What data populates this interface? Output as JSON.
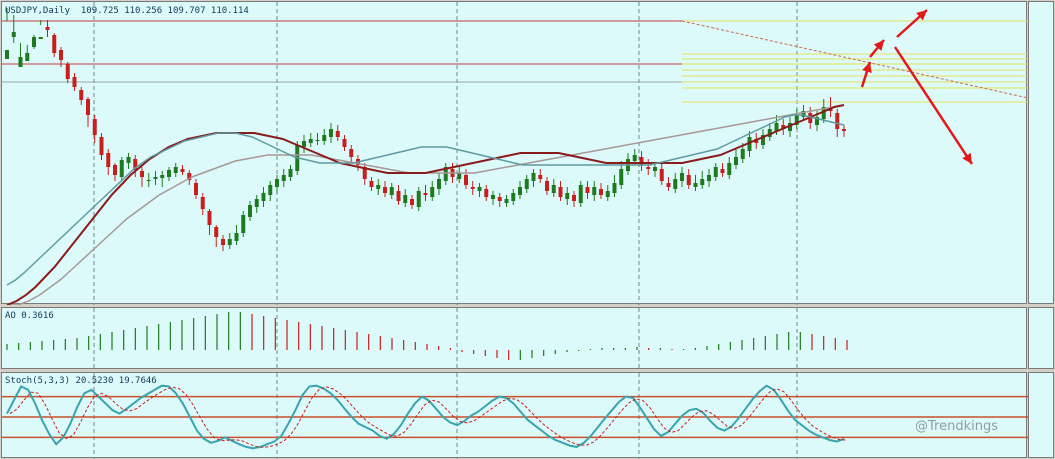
{
  "main_header": "USDJPY,Daily  109.725 110.256 109.707 110.114",
  "ao_header": "AO 0.3616",
  "stoch_header": "Stoch(5,3,3) 20.5230 19.7646",
  "watermark": "@Trendkings",
  "colors": {
    "background": "#dcfafa",
    "bull_candle": "#1e7a1e",
    "bear_candle": "#c81e1e",
    "ma_fast": "#5f9aa0",
    "ma_mid": "#8b1a1a",
    "ma_slow": "#a89896",
    "fib_lines": "#e6e05a",
    "arrow": "#e41818",
    "stoch_main": "#3aa3b0",
    "stoch_signal": "#c81e1e",
    "stoch_levels": "#c8502a"
  },
  "chart_data": [
    {
      "type": "candlestick",
      "title": "USDJPY,Daily",
      "ohlc_current": {
        "open": 109.725,
        "high": 110.256,
        "low": 109.707,
        "close": 110.114
      },
      "candles": [
        [
          246,
          255,
          297,
          284
        ],
        [
          268,
          273,
          290,
          262
        ],
        [
          238,
          248,
          262,
          238
        ],
        [
          244,
          252,
          260,
          247
        ],
        [
          258,
          268,
          270,
          256
        ],
        [
          266,
          268,
          285,
          280
        ],
        [
          278,
          275,
          285,
          268
        ],
        [
          270,
          252,
          272,
          248
        ],
        [
          255,
          245,
          258,
          238
        ],
        [
          241,
          226,
          243,
          222
        ],
        [
          228,
          218,
          232,
          214
        ],
        [
          215,
          205,
          218,
          200
        ],
        [
          206,
          190,
          208,
          178
        ],
        [
          186,
          170,
          190,
          162
        ],
        [
          168,
          150,
          172,
          145
        ],
        [
          152,
          138,
          156,
          130
        ],
        [
          140,
          130,
          142,
          124
        ],
        [
          128,
          145,
          148,
          124
        ],
        [
          142,
          148,
          152,
          136
        ],
        [
          146,
          135,
          150,
          128
        ],
        [
          134,
          128,
          138,
          118
        ],
        [
          124,
          125,
          132,
          118
        ],
        [
          126,
          128,
          134,
          120
        ],
        [
          127,
          130,
          134,
          118
        ],
        [
          128,
          135,
          138,
          124
        ],
        [
          132,
          138,
          142,
          128
        ],
        [
          136,
          133,
          140,
          130
        ],
        [
          132,
          125,
          135,
          120
        ],
        [
          122,
          110,
          126,
          106
        ],
        [
          108,
          96,
          112,
          90
        ],
        [
          94,
          80,
          96,
          70
        ],
        [
          78,
          68,
          80,
          58
        ],
        [
          66,
          60,
          70,
          54
        ],
        [
          60,
          66,
          72,
          56
        ],
        [
          64,
          72,
          80,
          60
        ],
        [
          72,
          90,
          94,
          68
        ],
        [
          88,
          100,
          104,
          84
        ],
        [
          98,
          106,
          110,
          92
        ],
        [
          104,
          112,
          118,
          98
        ],
        [
          110,
          120,
          124,
          104
        ],
        [
          118,
          126,
          130,
          112
        ],
        [
          124,
          130,
          136,
          118
        ],
        [
          128,
          136,
          140,
          124
        ],
        [
          134,
          160,
          164,
          130
        ],
        [
          158,
          164,
          170,
          152
        ],
        [
          162,
          166,
          172,
          158
        ],
        [
          164,
          165,
          172,
          160
        ],
        [
          164,
          170,
          176,
          160
        ],
        [
          168,
          176,
          182,
          162
        ],
        [
          174,
          168,
          180,
          164
        ],
        [
          166,
          158,
          170,
          154
        ],
        [
          156,
          148,
          160,
          142
        ],
        [
          146,
          140,
          150,
          134
        ],
        [
          138,
          126,
          142,
          120
        ],
        [
          124,
          118,
          128,
          114
        ],
        [
          116,
          120,
          126,
          110
        ],
        [
          118,
          112,
          124,
          108
        ],
        [
          110,
          118,
          122,
          106
        ],
        [
          114,
          104,
          120,
          100
        ],
        [
          102,
          110,
          116,
          98
        ],
        [
          106,
          100,
          110,
          96
        ],
        [
          98,
          114,
          118,
          94
        ],
        [
          112,
          110,
          120,
          104
        ],
        [
          108,
          118,
          124,
          104
        ],
        [
          116,
          126,
          132,
          110
        ],
        [
          124,
          138,
          142,
          120
        ],
        [
          136,
          128,
          142,
          122
        ],
        [
          126,
          132,
          140,
          122
        ],
        [
          130,
          120,
          136,
          116
        ],
        [
          118,
          116,
          124,
          110
        ],
        [
          114,
          118,
          122,
          108
        ],
        [
          116,
          108,
          120,
          104
        ],
        [
          106,
          110,
          114,
          100
        ],
        [
          108,
          104,
          112,
          98
        ],
        [
          102,
          106,
          110,
          98
        ],
        [
          104,
          112,
          116,
          100
        ],
        [
          110,
          118,
          124,
          106
        ],
        [
          116,
          126,
          130,
          112
        ],
        [
          124,
          132,
          136,
          118
        ],
        [
          130,
          126,
          136,
          122
        ],
        [
          124,
          114,
          128,
          110
        ],
        [
          112,
          120,
          126,
          108
        ],
        [
          118,
          108,
          124,
          104
        ],
        [
          106,
          112,
          118,
          100
        ],
        [
          110,
          104,
          114,
          98
        ],
        [
          102,
          120,
          124,
          98
        ],
        [
          118,
          112,
          124,
          106
        ],
        [
          110,
          118,
          124,
          104
        ],
        [
          116,
          110,
          122,
          106
        ],
        [
          108,
          114,
          120,
          104
        ],
        [
          112,
          122,
          130,
          108
        ],
        [
          120,
          136,
          144,
          116
        ],
        [
          134,
          146,
          152,
          130
        ],
        [
          144,
          150,
          156,
          140
        ],
        [
          148,
          140,
          154,
          134
        ],
        [
          138,
          136,
          146,
          130
        ],
        [
          134,
          138,
          142,
          128
        ],
        [
          136,
          124,
          142,
          120
        ],
        [
          122,
          118,
          128,
          114
        ],
        [
          116,
          126,
          132,
          112
        ],
        [
          124,
          132,
          138,
          118
        ],
        [
          130,
          120,
          136,
          116
        ],
        [
          118,
          122,
          130,
          114
        ],
        [
          120,
          126,
          134,
          116
        ],
        [
          124,
          130,
          136,
          118
        ],
        [
          128,
          138,
          142,
          124
        ],
        [
          136,
          132,
          142,
          128
        ],
        [
          130,
          142,
          148,
          126
        ],
        [
          140,
          148,
          156,
          136
        ],
        [
          146,
          156,
          162,
          142
        ],
        [
          154,
          168,
          174,
          148
        ],
        [
          166,
          162,
          172,
          156
        ],
        [
          160,
          170,
          176,
          156
        ],
        [
          168,
          176,
          182,
          164
        ],
        [
          174,
          182,
          190,
          170
        ],
        [
          180,
          176,
          186,
          170
        ],
        [
          174,
          182,
          188,
          168
        ],
        [
          180,
          190,
          196,
          176
        ],
        [
          188,
          194,
          200,
          184
        ],
        [
          192,
          182,
          198,
          176
        ],
        [
          180,
          188,
          194,
          174
        ],
        [
          186,
          198,
          206,
          182
        ],
        [
          196,
          194,
          208,
          188
        ],
        [
          192,
          176,
          196,
          168
        ],
        [
          176,
          174,
          180,
          168
        ]
      ],
      "ma_fast": [
        20,
        25,
        32,
        40,
        48,
        56,
        64,
        72,
        80,
        88,
        96,
        104,
        112,
        120,
        128,
        136,
        142,
        148,
        152,
        156,
        160,
        164,
        166,
        168,
        170,
        172,
        172,
        172,
        170,
        168,
        164,
        160,
        156,
        152,
        148,
        146,
        144,
        142,
        142,
        142,
        142,
        142,
        144,
        146,
        148,
        150,
        152,
        154,
        156,
        158,
        158,
        158,
        158,
        156,
        154,
        152,
        150,
        148,
        146,
        144,
        142,
        140,
        140,
        140,
        140,
        140,
        140,
        140,
        140,
        140,
        140,
        140,
        140,
        140,
        140,
        140,
        140,
        142,
        144,
        146,
        148,
        150,
        152,
        154,
        156,
        160,
        164,
        168,
        172,
        176,
        180,
        184,
        188,
        190,
        190,
        188,
        186,
        184,
        182,
        180
      ],
      "ma_mid": [
        0,
        4,
        10,
        18,
        28,
        38,
        50,
        62,
        74,
        86,
        98,
        110,
        120,
        130,
        138,
        146,
        152,
        158,
        162,
        166,
        168,
        170,
        172,
        172,
        172,
        172,
        172,
        170,
        168,
        166,
        162,
        158,
        154,
        150,
        146,
        142,
        140,
        138,
        136,
        134,
        132,
        132,
        132,
        132,
        132,
        134,
        136,
        138,
        140,
        142,
        144,
        146,
        148,
        150,
        152,
        152,
        152,
        152,
        152,
        150,
        148,
        146,
        144,
        142,
        142,
        142,
        142,
        142,
        142,
        142,
        142,
        142,
        144,
        146,
        148,
        150,
        154,
        158,
        162,
        166,
        170,
        174,
        178,
        182,
        186,
        190,
        194,
        198,
        200
      ],
      "ma_slow": [
        0,
        0,
        4,
        10,
        18,
        26,
        36,
        46,
        56,
        66,
        76,
        86,
        94,
        102,
        110,
        116,
        122,
        128,
        132,
        136,
        140,
        144,
        146,
        148,
        150,
        150,
        150,
        150,
        150,
        148,
        146,
        144,
        142,
        140,
        138,
        136,
        134,
        132,
        132,
        132,
        132,
        132,
        132,
        132,
        134,
        136,
        138,
        140,
        142,
        144,
        146,
        148,
        150,
        152,
        154,
        156,
        158,
        160,
        162,
        164,
        166,
        168,
        170,
        172,
        174,
        176,
        178,
        180,
        182,
        184,
        186,
        188,
        190,
        192,
        194,
        196,
        198,
        200
      ]
    },
    {
      "type": "bar",
      "title": "AO",
      "current_value": 0.3616,
      "values": [
        6,
        7,
        8,
        9,
        10,
        11,
        12,
        14,
        16,
        18,
        20,
        22,
        24,
        26,
        28,
        30,
        32,
        34,
        36,
        38,
        38,
        36,
        34,
        32,
        30,
        28,
        26,
        24,
        22,
        20,
        18,
        16,
        14,
        12,
        10,
        8,
        6,
        4,
        2,
        -2,
        -4,
        -6,
        -8,
        -10,
        -10,
        -8,
        -6,
        -4,
        -2,
        -1,
        1,
        2,
        2,
        2,
        3,
        2,
        2,
        1,
        1,
        2,
        4,
        6,
        8,
        10,
        12,
        14,
        16,
        18,
        18,
        16,
        14,
        12,
        10
      ]
    },
    {
      "type": "line",
      "title": "Stoch(5,3,3)",
      "main_value": 20.523,
      "signal_value": 19.7646,
      "levels": [
        80,
        50,
        20
      ],
      "k": [
        55,
        75,
        95,
        90,
        70,
        45,
        25,
        10,
        20,
        40,
        65,
        85,
        90,
        80,
        70,
        60,
        55,
        62,
        70,
        78,
        84,
        90,
        96,
        95,
        85,
        70,
        50,
        30,
        18,
        12,
        15,
        20,
        15,
        10,
        6,
        4,
        6,
        10,
        14,
        22,
        40,
        60,
        82,
        95,
        96,
        92,
        85,
        75,
        62,
        50,
        40,
        35,
        30,
        22,
        18,
        25,
        38,
        55,
        70,
        80,
        74,
        62,
        50,
        42,
        38,
        44,
        52,
        58,
        66,
        74,
        80,
        78,
        70,
        58,
        46,
        38,
        30,
        22,
        16,
        12,
        8,
        6,
        12,
        22,
        35,
        48,
        60,
        72,
        80,
        78,
        64,
        48,
        32,
        22,
        28,
        40,
        52,
        60,
        62,
        56,
        44,
        34,
        30,
        36,
        48,
        62,
        76,
        88,
        96,
        90,
        76,
        60,
        46,
        38,
        30,
        24,
        20,
        16,
        14,
        18
      ]
    }
  ]
}
